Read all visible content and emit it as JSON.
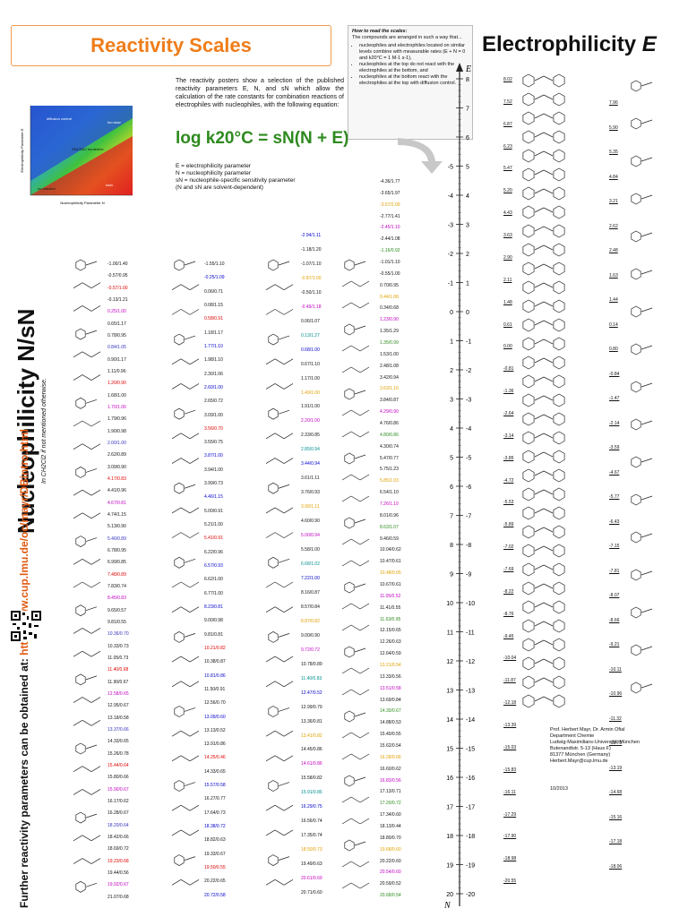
{
  "header": {
    "title": "Reactivity Scales",
    "electrophilicity_title": "Electrophilicity",
    "electrophilicity_symbol": "E"
  },
  "intro": {
    "text": "The reactivity posters show a selection of the published reactivity parameters E, N, and sN which allow the calculation of the rate constants for combination reactions of electrophiles with nucleophiles, with the following equation:",
    "equation": "log k20°C = sN(N + E)",
    "definitions": [
      "E = electrophilicity parameter",
      "N = nucleophilicity parameter",
      "sN = nucleophile-specific sensitivity parameter",
      "(N and sN are solvent-dependent)"
    ]
  },
  "how_to": {
    "title": "How to read the scales:",
    "lead": "The compounds are arranged in such a way that...",
    "bullets": [
      "nucleophiles and electrophiles located on similar levels combine with measurable rates (E + N = 0 and k20°C = 1 M-1 s-1),",
      "nucleophiles at the top do not react with the electrophiles at the bottom, and",
      "nucleophiles at the bottom react with the electrophiles at the top with diffusion control."
    ]
  },
  "left_panel": {
    "title": "Nucleophilicity N/sN",
    "subtitle": "In CH2Cl2 if not mentioned otherwise.",
    "url_lead": "Further reactivity parameters can be obtained at:",
    "url": "http://www.cup.lmu.de/oc/mayr/DBintro.html"
  },
  "plot": {
    "xlabel": "Nucleophilicity Parameter N",
    "ylabel": "Electrophilicity Parameter E",
    "regions": [
      "too slow",
      "diffusion control",
      "SN1/SN2 borderline",
      "no reaction",
      "ionic"
    ]
  },
  "scale": {
    "top_label": "E",
    "bottom_label": "N",
    "right_ticks": [
      "8",
      "7",
      "6",
      "5",
      "4",
      "3",
      "2",
      "1",
      "0",
      "-1",
      "-2",
      "-3",
      "-4",
      "-5",
      "-6",
      "-7",
      "-8",
      "-9",
      "-10",
      "-11",
      "-12",
      "-13",
      "-14",
      "-15",
      "-16",
      "-17",
      "-18",
      "-19",
      "-20"
    ],
    "left_ticks": [
      "-5",
      "-4",
      "-3",
      "-2",
      "-1",
      "0",
      "1",
      "2",
      "3",
      "4",
      "5",
      "6",
      "7",
      "8",
      "9",
      "10",
      "11",
      "12",
      "13",
      "14",
      "15",
      "16",
      "17",
      "18",
      "19",
      "20"
    ]
  },
  "electrophile_values": [
    "8.02",
    "7.52",
    "6.87",
    "6.23",
    "5.47",
    "5.20",
    "4.43",
    "3.63",
    "2.90",
    "2.11",
    "1.48",
    "0.61",
    "0.00",
    "-0.81",
    "-1.36",
    "-2.64",
    "-3.14",
    "-3.85",
    "-4.72",
    "-5.53",
    "-5.89",
    "-7.02",
    "-7.69",
    "-8.22",
    "-8.76",
    "-9.45",
    "-10.04",
    "-11.87",
    "-12.18",
    "-13.39",
    "-15.03",
    "-15.83",
    "-16.11",
    "-17.29",
    "-17.90",
    "-18.98",
    "-20.55"
  ],
  "electrophile_right_values": [
    "7.96",
    "5.90",
    "5.35",
    "4.84",
    "3.21",
    "2.62",
    "2.48",
    "1.63",
    "1.44",
    "0.14",
    "0.80",
    "-0.84",
    "-1.47",
    "-2.14",
    "-3.59",
    "-4.67",
    "-5.77",
    "-6.43",
    "-7.15",
    "-7.81",
    "-8.07",
    "-8.66",
    "-9.21",
    "-10.11",
    "-10.96",
    "-11.32",
    "-12.78",
    "-13.19",
    "-14.68",
    "-15.16",
    "-17.18",
    "-18.06"
  ],
  "nucleophile_col1": [
    "-1.00/1.40",
    "-0.57/0.95",
    "-0.57/1.00",
    "-0.13/1.21",
    "0.25/1.00",
    "0.65/1.17",
    "0.78/0.95",
    "0.84/1.05",
    "0.90/1.17",
    "1.11/0.96",
    "1.20/0.90",
    "1.68/1.00",
    "1.70/1.06",
    "1.79/0.96",
    "1.90/0.98",
    "2.00/1.00",
    "2.62/0.89",
    "3.09/0.90",
    "4.17/0.83",
    "4.41/0.96",
    "4.67/0.81",
    "4.74/1.15",
    "5.13/0.90",
    "5.46/0.89",
    "6.78/0.95",
    "6.99/0.85",
    "7.48/0.89",
    "7.83/0.74",
    "8.45/0.83",
    "9.65/0.57",
    "9.81/0.55",
    "10.36/0.70",
    "10.33/0.73",
    "11.05/0.73",
    "11.40/0.68",
    "11.90/0.67",
    "12.58/0.65",
    "12.95/0.67",
    "13.18/0.58",
    "13.37/0.66",
    "14.33/0.65",
    "15.26/0.78",
    "15.44/0.64",
    "15.80/0.66",
    "15.90/0.67",
    "16.17/0.62",
    "16.28/0.67",
    "18.20/0.64",
    "18.42/0.66",
    "18.69/0.72",
    "19.23/0.68",
    "19.44/0.56",
    "19.92/0.67",
    "21.07/0.68"
  ],
  "nucleophile_col2": [
    "-1.55/1.10",
    "-0.25/1.09",
    "0.06/0.71",
    "0.08/1.15",
    "0.58/0.91",
    "1.18/1.17",
    "1.77/1.10",
    "1.98/1.10",
    "2.30/1.06",
    "2.60/1.00",
    "2.65/0.72",
    "3.09/1.00",
    "3.56/0.70",
    "3.55/0.75",
    "3.87/1.00",
    "3.94/1.00",
    "3.99/0.73",
    "4.46/1.15",
    "5.00/0.91",
    "5.21/1.00",
    "5.41/0.91",
    "6.22/0.96",
    "6.57/0.93",
    "6.62/1.00",
    "6.77/1.00",
    "8.23/0.81",
    "9.00/0.98",
    "9.81/0.81",
    "10.21/0.82",
    "10.38/0.87",
    "10.81/0.86",
    "11.50/0.91",
    "12.56/0.70",
    "13.09/0.60",
    "13.13/0.52",
    "13.91/0.86",
    "14.25/0.46",
    "14.33/0.65",
    "15.57/0.58",
    "16.27/0.77",
    "17.64/0.73",
    "18.38/0.72",
    "18.82/0.63",
    "19.33/0.67",
    "19.50/0.55",
    "20.22/0.65",
    "20.72/0.58"
  ],
  "nucleophile_col3": [
    "-2.94/1.11",
    "-1.18/1.20",
    "-1.07/1.10",
    "-0.87/1.00",
    "-0.50/1.10",
    "-0.49/1.18",
    "0.06/1.07",
    "0.13/1.27",
    "0.68/1.00",
    "0.67/1.10",
    "1.17/1.00",
    "1.49/1.00",
    "1.91/1.00",
    "2.20/1.00",
    "2.33/0.85",
    "2.85/0.94",
    "3.44/0.94",
    "3.61/1.11",
    "3.76/0.93",
    "3.90/1.11",
    "4.60/0.90",
    "5.00/0.94",
    "5.58/1.00",
    "6.68/1.02",
    "7.22/1.00",
    "8.16/0.87",
    "8.57/0.84",
    "8.87/0.82",
    "9.00/0.90",
    "9.72/0.72",
    "10.78/0.89",
    "11.40/0.83",
    "12.47/0.52",
    "12.99/0.79",
    "13.36/0.81",
    "13.41/0.82",
    "14.45/0.86",
    "14.61/0.86",
    "15.58/0.82",
    "15.91/0.86",
    "16.29/0.75",
    "16.56/0.74",
    "17.35/0.74",
    "18.50/0.73",
    "19.49/0.63",
    "20.61/0.69",
    "20.71/0.60"
  ],
  "nucleophile_col4": [
    "-4.36/1.77",
    "-3.65/1.97",
    "-3.57/2.09",
    "-2.77/1.41",
    "-2.45/1.10",
    "-2.44/1.08",
    "-1.16/0.92",
    "-1.01/1.10",
    "-0.55/1.00",
    "0.70/0.95",
    "0.44/1.08",
    "0.34/0.68",
    "1.23/0.90",
    "1.35/1.29",
    "1.35/0.99",
    "1.53/1.00",
    "2.48/1.08",
    "3.42/0.94",
    "3.63/1.10",
    "3.84/0.87",
    "4.29/0.90",
    "4.76/0.86",
    "4.80/0.86",
    "4.30/0.74",
    "5.47/0.77",
    "5.75/1.23",
    "5.85/1.03",
    "6.54/1.10",
    "7.26/1.10",
    "8.01/0.96",
    "8.63/1.07",
    "9.46/0.59",
    "10.04/0.62",
    "10.47/0.61",
    "10.48/0.65",
    "10.67/0.61",
    "11.05/0.52",
    "11.41/0.55",
    "11.63/0.95",
    "12.15/0.65",
    "12.26/0.63",
    "12.64/0.59",
    "13.21/0.54",
    "13.33/0.56",
    "13.51/0.58",
    "13.69/0.84",
    "14.30/0.67",
    "14.88/0.53",
    "15.40/0.55",
    "15.62/0.54",
    "16.28/0.66",
    "16.60/0.62",
    "16.83/0.56",
    "17.13/0.71",
    "17.20/0.72",
    "17.34/0.60",
    "18.13/0.44",
    "18.80/0.70",
    "19.68/0.60",
    "20.22/0.60",
    "20.54/0.60",
    "20.59/0.52",
    "20.68/0.54"
  ],
  "contact": [
    "Prof. Herbert Mayr, Dr. Armin Ofial",
    "Department Chemie",
    "Ludwig-Maximilians-Universität München",
    "Butenandtstr. 5-13 (Haus F)",
    "81377 München (Germany)",
    "Herbert.Mayr@cup.lmu.de"
  ],
  "date": "10/2013",
  "colors": {
    "accent": "#ef7d1a",
    "equation": "#2e8a1f",
    "si": "#e00000",
    "ge": "#c000c0",
    "enol": "#0000cc",
    "sulfur": "#e0a000",
    "carbanion": "#009090"
  }
}
